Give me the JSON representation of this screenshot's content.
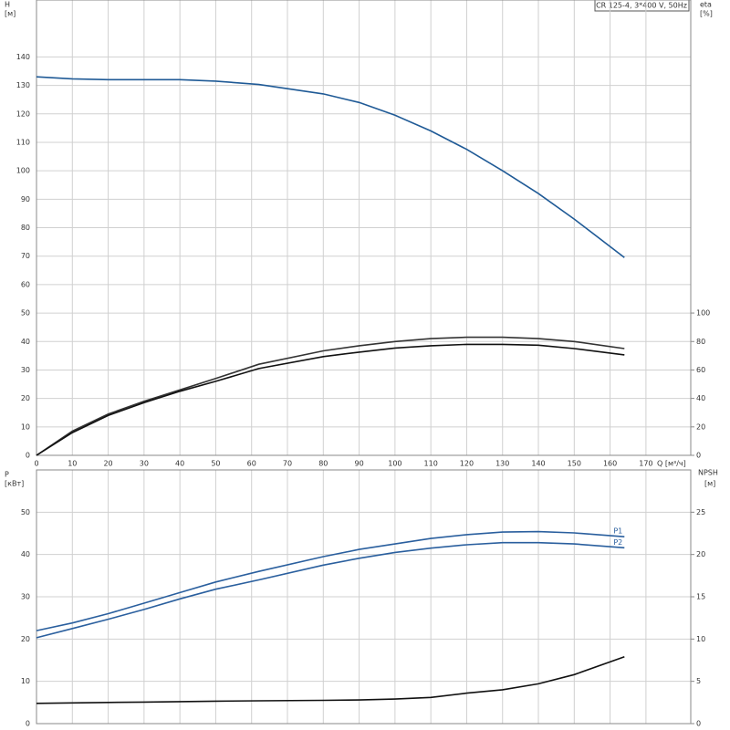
{
  "chart_data": [
    {
      "type": "line",
      "title": "CR 125-4, 3*400 V, 50Hz",
      "x_label": "Q [м³/ч]",
      "y_label": "H",
      "y_unit": "[м]",
      "y2_label": "eta",
      "y2_unit": "[%]",
      "x": [
        0,
        10,
        20,
        30,
        40,
        50,
        62,
        80,
        90,
        100,
        110,
        120,
        130,
        140,
        150,
        164
      ],
      "xlim": [
        0,
        182.5
      ],
      "xticks": [
        0,
        10,
        20,
        30,
        40,
        50,
        60,
        70,
        80,
        90,
        100,
        110,
        120,
        130,
        140,
        150,
        160,
        170
      ],
      "ylim": [
        0,
        160
      ],
      "yticks": [
        0,
        10,
        20,
        30,
        40,
        50,
        60,
        70,
        80,
        90,
        100,
        110,
        120,
        130,
        140
      ],
      "y2lim": [
        0,
        320
      ],
      "y2ticks": [
        0,
        20,
        40,
        60,
        80,
        100
      ],
      "grid": true,
      "series": [
        {
          "color": "#1f5a96",
          "values": [
            133,
            132.3,
            132,
            132,
            132,
            131.5,
            130.3,
            127,
            124,
            119.5,
            114,
            107.5,
            100,
            92,
            83,
            69.5
          ]
        },
        {
          "color": "#333333",
          "axis": "y2",
          "values": [
            0,
            17,
            29,
            38,
            46,
            54,
            64,
            73.4,
            77,
            80,
            82,
            83,
            83,
            82,
            80,
            75
          ]
        },
        {
          "color": "#111111",
          "axis": "y2",
          "values": [
            0,
            16,
            28,
            37,
            45,
            52,
            61,
            69.4,
            72.5,
            75.4,
            77,
            78,
            78,
            77.4,
            75,
            70.6
          ]
        }
      ]
    },
    {
      "type": "line",
      "y_label": "P",
      "y_unit": "[кВт]",
      "y2_label": "NPSH",
      "y2_unit": "[м]",
      "x": [
        0,
        10,
        20,
        30,
        40,
        50,
        62,
        80,
        90,
        100,
        110,
        120,
        130,
        140,
        150,
        164
      ],
      "xlim": [
        0,
        182.5
      ],
      "ylim": [
        0,
        60
      ],
      "yticks": [
        0,
        10,
        20,
        30,
        40,
        50
      ],
      "y2lim": [
        0,
        30
      ],
      "y2ticks": [
        0,
        5,
        10,
        15,
        20,
        25
      ],
      "grid": true,
      "series": [
        {
          "name": "P1",
          "color": "#2a5f9e",
          "values": [
            22,
            23.8,
            26,
            28.5,
            31,
            33.5,
            36,
            39.5,
            41.2,
            42.5,
            43.8,
            44.7,
            45.3,
            45.4,
            45.1,
            44.2
          ]
        },
        {
          "name": "P2",
          "color": "#2a5f9e",
          "values": [
            20.3,
            22.5,
            24.7,
            27,
            29.5,
            31.8,
            34,
            37.5,
            39.1,
            40.5,
            41.5,
            42.3,
            42.8,
            42.8,
            42.5,
            41.6
          ]
        },
        {
          "color": "#111111",
          "axis": "y2",
          "values": [
            2.4,
            2.45,
            2.5,
            2.55,
            2.6,
            2.65,
            2.7,
            2.75,
            2.8,
            2.9,
            3.1,
            3.6,
            4,
            4.7,
            5.8,
            7.9
          ]
        }
      ]
    }
  ]
}
